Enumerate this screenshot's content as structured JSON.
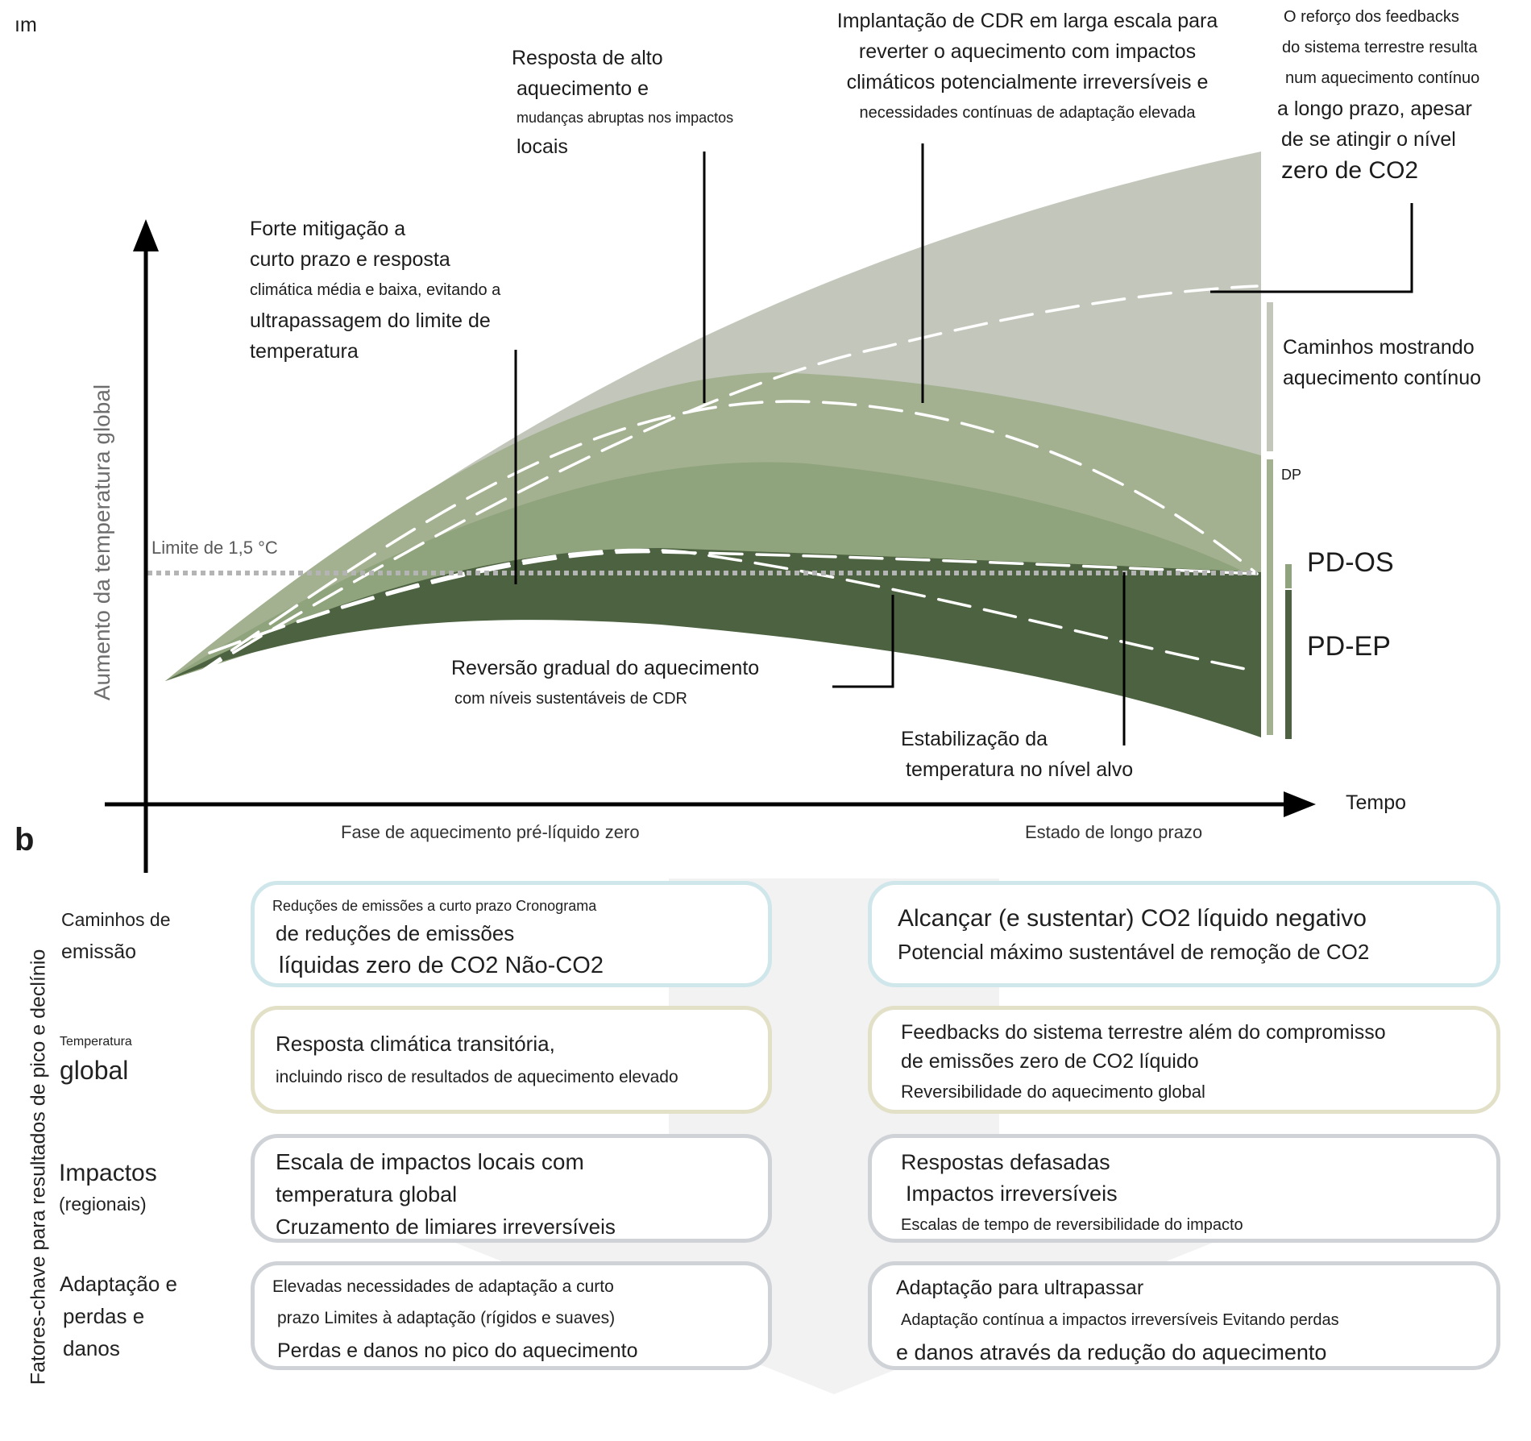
{
  "panel_a": {
    "corner_fragment": "ım",
    "y_axis_label": "Aumento da temperatura global",
    "x_axis_label": "Tempo",
    "threshold_label": "Limite de 1,5 °C",
    "phase_left": "Fase de aquecimento pré-líquido zero",
    "phase_right": "Estado de longo prazo",
    "annotations": {
      "strong_mitigation": [
        "Forte mitigação a",
        "curto prazo e resposta",
        "climática média e baixa, evitando a",
        "ultrapassagem do limite de",
        "temperatura"
      ],
      "high_warming": [
        "Resposta de alto",
        "aquecimento e",
        "mudanças abruptas nos impactos",
        "locais"
      ],
      "cdr_deployment": [
        "Implantação de CDR em larga escala para",
        "reverter o aquecimento com impactos",
        "climáticos potencialmente irreversíveis e",
        "necessidades contínuas de adaptação elevada"
      ],
      "feedbacks": [
        "O reforço dos feedbacks",
        "do sistema terrestre resulta",
        "num aquecimento contínuo",
        "a longo prazo, apesar",
        "de se atingir o nível",
        "zero de CO2"
      ],
      "gradual_reversal": [
        "Reversão gradual do aquecimento",
        "com níveis sustentáveis de CDR"
      ],
      "stabilization": [
        "Estabilização da",
        "temperatura no nível alvo"
      ]
    },
    "side_labels": {
      "continuous": [
        "Caminhos mostrando",
        "aquecimento contínuo"
      ],
      "dp": "DP",
      "pd_os": "PD-OS",
      "pd_ep": "PD-EP"
    },
    "colors": {
      "light_band": "#c3c7bb",
      "mid_band": "#a3b191",
      "medium_band": "#8fa37c",
      "dark_band": "#4c6240",
      "dashed_line": "#ffffff",
      "threshold_line": "#b4b4b4"
    }
  },
  "panel_b": {
    "label": "b",
    "y_axis_label": "Fatores-chave para resultados de pico e declínio",
    "rows": [
      {
        "label": [
          "Caminhos de",
          "emissão"
        ],
        "left": [
          "Reduções de emissões a curto prazo Cronograma",
          "de reduções de emissões",
          "líquidas zero de CO2 Não-CO2"
        ],
        "right": [
          "Alcançar (e sustentar) CO2 líquido negativo",
          "Potencial máximo sustentável de remoção de CO2"
        ]
      },
      {
        "label": [
          "Temperatura",
          "global"
        ],
        "left": [
          "Resposta climática transitória,",
          "incluindo risco de resultados de aquecimento elevado"
        ],
        "right": [
          "Feedbacks do sistema terrestre além do compromisso",
          "de emissões zero de CO2 líquido",
          "Reversibilidade do aquecimento global"
        ]
      },
      {
        "label": [
          "Impactos",
          "(regionais)"
        ],
        "left": [
          "Escala de impactos locais com",
          "temperatura global",
          "Cruzamento de limiares irreversíveis"
        ],
        "right": [
          "Respostas defasadas",
          "Impactos irreversíveis",
          "Escalas de tempo de reversibilidade do impacto"
        ]
      },
      {
        "label": [
          "Adaptação e",
          "perdas e",
          "danos"
        ],
        "left": [
          "Elevadas necessidades de adaptação a curto",
          "prazo Limites à adaptação (rígidos e suaves)",
          "Perdas e danos no pico do aquecimento"
        ],
        "right": [
          "Adaptação para ultrapassar",
          "Adaptação contínua a impactos irreversíveis Evitando perdas",
          "e danos através da redução do aquecimento"
        ]
      }
    ],
    "colors": {
      "emission_border": "#cfe6ea",
      "temperature_border": "#e2e0c6",
      "impacts_border": "#cfd2d6",
      "adaptation_border": "#cfd2d6",
      "background_arrow": "#eeeeee"
    }
  }
}
